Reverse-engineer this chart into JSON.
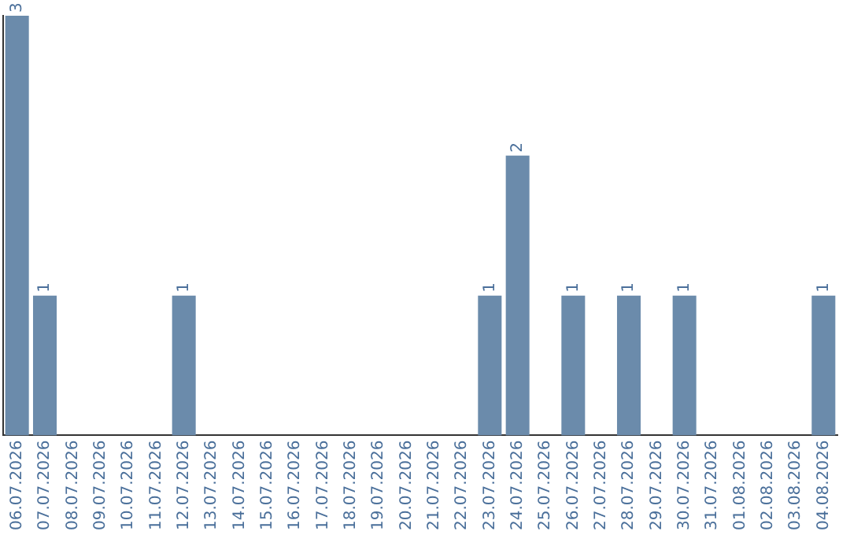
{
  "chart_data": {
    "type": "bar",
    "categories": [
      "06.07.2026",
      "07.07.2026",
      "08.07.2026",
      "09.07.2026",
      "10.07.2026",
      "11.07.2026",
      "12.07.2026",
      "13.07.2026",
      "14.07.2026",
      "15.07.2026",
      "16.07.2026",
      "17.07.2026",
      "18.07.2026",
      "19.07.2026",
      "20.07.2026",
      "21.07.2026",
      "22.07.2026",
      "23.07.2026",
      "24.07.2026",
      "25.07.2026",
      "26.07.2026",
      "27.07.2026",
      "28.07.2026",
      "29.07.2026",
      "30.07.2026",
      "31.07.2026",
      "01.08.2026",
      "02.08.2026",
      "03.08.2026",
      "04.08.2026"
    ],
    "values": [
      3,
      1,
      0,
      0,
      0,
      0,
      1,
      0,
      0,
      0,
      0,
      0,
      0,
      0,
      0,
      0,
      0,
      1,
      2,
      0,
      1,
      0,
      1,
      0,
      1,
      0,
      0,
      0,
      0,
      1
    ],
    "value_labels": [
      "3",
      "1",
      null,
      null,
      null,
      null,
      "1",
      null,
      null,
      null,
      null,
      null,
      null,
      null,
      null,
      null,
      null,
      "1",
      "2",
      null,
      "1",
      null,
      "1",
      null,
      "1",
      null,
      null,
      null,
      null,
      "1"
    ],
    "color": "#6b8bab",
    "ylim": [
      0,
      3
    ],
    "tick_labels": "x",
    "grid": false,
    "legend": false
  }
}
